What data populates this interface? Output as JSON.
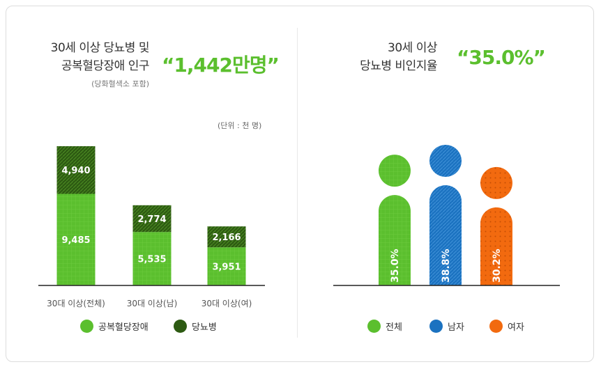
{
  "left": {
    "title_line1": "30세 이상 당뇨병 및",
    "title_line2": "공복혈당장애 인구",
    "subtitle": "(당화혈색소 포함)",
    "highlight": "“1,442만명”",
    "unit": "(단위 : 천 명)",
    "legend": [
      {
        "label": "공복혈당장애",
        "color": "#5bbf2e"
      },
      {
        "label": "당뇨병",
        "color": "#2d5a12"
      }
    ]
  },
  "right": {
    "title_line1": "30세 이상",
    "title_line2": "당뇨병 비인지율",
    "highlight": "“35.0%”",
    "legend": [
      {
        "label": "전체",
        "color": "#5bbf2e"
      },
      {
        "label": "남자",
        "color": "#1b72c0"
      },
      {
        "label": "여자",
        "color": "#f26a0f"
      }
    ]
  },
  "chart_data": [
    {
      "type": "bar",
      "stacked": true,
      "categories": [
        "30대 이상(전체)",
        "30대 이상(남)",
        "30대 이상(여)"
      ],
      "series": [
        {
          "name": "공복혈당장애",
          "values": [
            9485,
            5535,
            3951
          ],
          "labels": [
            "9,485",
            "5,535",
            "3,951"
          ],
          "color": "#5bbf2e"
        },
        {
          "name": "당뇨병",
          "values": [
            4940,
            2774,
            2166
          ],
          "labels": [
            "4,940",
            "2,774",
            "2,166"
          ],
          "color": "#2d5a12"
        }
      ],
      "ylim": [
        0,
        14425
      ]
    },
    {
      "type": "bar",
      "categories": [
        "전체",
        "남자",
        "여자"
      ],
      "values": [
        35.0,
        38.8,
        30.2
      ],
      "labels": [
        "35.0%",
        "38.8%",
        "30.2%"
      ],
      "colors": [
        "#5bbf2e",
        "#1b72c0",
        "#f26a0f"
      ]
    }
  ]
}
